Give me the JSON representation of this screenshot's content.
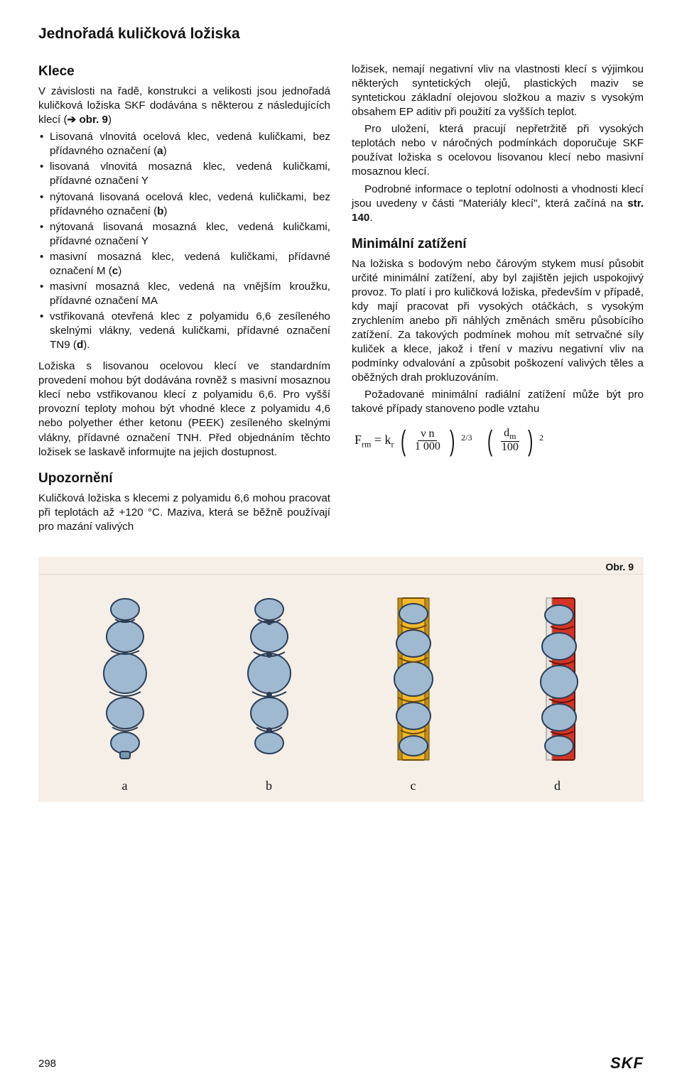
{
  "page_title": "Jednořadá kuličková ložiska",
  "klece": {
    "heading": "Klece",
    "intro_a": "V závislosti na řadě, konstrukci a velikosti jsou jednořadá kuličková ložiska SKF dodávána s některou z následujících klecí (",
    "intro_arrow": "➔",
    "intro_b": " obr. 9",
    "intro_c": ")",
    "bullets": [
      "Lisovaná vlnovitá ocelová klec, vedená kuličkami, bez přídavného označení (a)",
      "lisovaná vlnovitá mosazná klec, vedená kuličkami, přídavné označení Y",
      "nýtovaná lisovaná ocelová klec, vedená kuličkami, bez přídavného označení (b)",
      "nýtovaná lisovaná mosazná klec, vedená kuličkami, přídavné označení Y",
      "masivní mosazná klec, vedená kuličkami, přídavné označení M (c)",
      "masivní mosazná klec, vedená na vnějším kroužku, přídavné označení MA",
      "vstřikovaná otevřená klec z polyamidu 6,6 zesíleného skelnými vlákny, vedená kuličkami, přídavné označení TN9 (d)."
    ],
    "para2": "Ložiska s lisovanou ocelovou klecí ve standardním provedení mohou být dodávána rovněž s masivní mosaznou klecí nebo vstřikovanou klecí z polyamidu 6,6. Pro vyšší provozní teploty mohou být vhodné klece z polyamidu 4,6 nebo polyether éther ketonu (PEEK) zesíleného skelnými vlákny, přídavné označení TNH. Před objednáním těchto ložisek se laskavě informujte na jejich dostupnost."
  },
  "upozorneni": {
    "heading": "Upozornění",
    "para": "Kuličková ložiska s klecemi z polyamidu 6,6 mohou pracovat při teplotách až +120 °C. Maziva, která se běžně používají pro mazání valivých"
  },
  "right": {
    "para1a": "ložisek, nemají negativní vliv na vlastnosti klecí s výjimkou některých syntetických olejů, plastických maziv se syntetickou základní olejovou složkou a maziv s vysokým obsahem EP aditiv při použití za vyšších teplot.",
    "para1b": "Pro uložení, která pracují nepřetržitě při vysokých teplotách nebo v náročných podmínkách doporučuje SKF používat ložiska s ocelovou lisovanou klecí nebo masivní mosaznou klecí.",
    "para1c_a": "Podrobné informace o teplotní odolnosti a vhodnosti klecí jsou uvedeny v části \"Materiály klecí\", která začíná na ",
    "para1c_b": "str. 140",
    "para1c_c": "."
  },
  "min": {
    "heading": "Minimální zatížení",
    "para1": "Na ložiska s bodovým nebo čárovým stykem musí působit určité minimální zatížení, aby byl zajištěn jejich uspokojivý provoz. To platí i pro kuličková ložiska, především v případě, kdy mají pracovat při vysokých otáčkách, s vysokým zrychlením anebo při náhlých změnách směru působícího zatížení. Za takových podmínek mohou mít setrvačné síly kuliček a klece, jakož i tření v mazivu negativní vliv na podmínky odvalování a způsobit poškození valivých těles a oběžných drah prokluzováním.",
    "para2": "Požadované minimální radiální zatížení může být pro takové případy stanoveno podle vztahu"
  },
  "formula": {
    "lhs": "F",
    "lhs_sub": "rm",
    "eq": " = k",
    "k_sub": "r",
    "num1": "ν n",
    "den1": "1 000",
    "exp1": "2/3",
    "num2": "d",
    "num2_sub": "m",
    "den2": "100",
    "exp2": "2"
  },
  "figure": {
    "label": "Obr. 9",
    "captions": [
      "a",
      "b",
      "c",
      "d"
    ],
    "colors": {
      "ball_fill": "#9fb9d0",
      "ball_stroke": "#2b3d55",
      "cage_c_fill": "#f2b82e",
      "cage_c_stroke": "#6b4a00",
      "cage_d_fill": "#d33423",
      "cage_d_stroke": "#6a1208",
      "bg": "#f5efe8"
    }
  },
  "page_number": "298",
  "brand": "SKF"
}
